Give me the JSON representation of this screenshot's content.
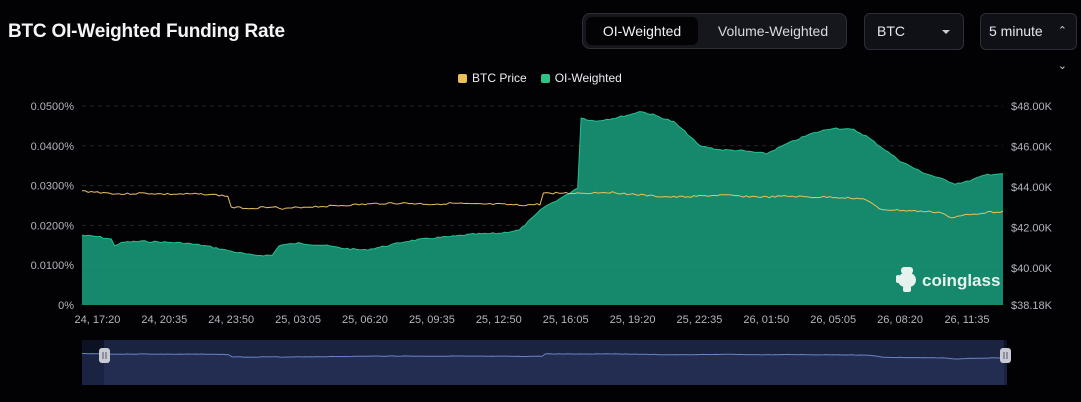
{
  "header": {
    "title": "BTC OI-Weighted Funding Rate",
    "tabs": [
      "OI-Weighted",
      "Volume-Weighted"
    ],
    "active_tab": "OI-Weighted",
    "coin_select": "BTC",
    "interval_select": "5 minute"
  },
  "watermark": "coinglass",
  "colors": {
    "funding_area": "#1aa07f",
    "btc_price": "#e8c05c",
    "legend_funding": "#2ec486",
    "navigator": "#1a2340"
  },
  "chart_data": {
    "type": "area",
    "x_ticks": [
      "24, 17:20",
      "24, 20:35",
      "24, 23:50",
      "25, 03:05",
      "25, 06:20",
      "25, 09:35",
      "25, 12:50",
      "25, 16:05",
      "25, 19:20",
      "25, 22:35",
      "26, 01:50",
      "26, 05:05",
      "26, 08:20",
      "26, 11:35"
    ],
    "y_left_ticks": [
      "0%",
      "0.0100%",
      "0.0200%",
      "0.0300%",
      "0.0400%",
      "0.0500%"
    ],
    "y_right_ticks": [
      "$38.18K",
      "$40.00K",
      "$42.00K",
      "$44.00K",
      "$46.00K",
      "$48.00K"
    ],
    "ylim_left": [
      0,
      0.0005
    ],
    "ylim_right": [
      38180,
      48000
    ],
    "grid": "horizontal",
    "legend_position": "top-center",
    "series": [
      {
        "name": "BTC Price",
        "axis": "right",
        "type": "line",
        "points": [
          [
            "24, 16:35",
            43800
          ],
          [
            "24, 17:20",
            43750
          ],
          [
            "24, 18:30",
            43650
          ],
          [
            "24, 19:30",
            43700
          ],
          [
            "24, 20:35",
            43650
          ],
          [
            "24, 21:40",
            43650
          ],
          [
            "24, 22:40",
            43650
          ],
          [
            "24, 23:40",
            43550
          ],
          [
            "24, 23:50",
            43000
          ],
          [
            "25, 00:50",
            42950
          ],
          [
            "25, 01:50",
            43050
          ],
          [
            "25, 02:20",
            42900
          ],
          [
            "25, 03:05",
            43000
          ],
          [
            "25, 04:20",
            43050
          ],
          [
            "25, 05:20",
            43100
          ],
          [
            "25, 06:20",
            43150
          ],
          [
            "25, 07:20",
            43200
          ],
          [
            "25, 08:20",
            43200
          ],
          [
            "25, 09:35",
            43150
          ],
          [
            "25, 10:35",
            43200
          ],
          [
            "25, 11:35",
            43150
          ],
          [
            "25, 12:50",
            43150
          ],
          [
            "25, 13:50",
            43100
          ],
          [
            "25, 14:50",
            43150
          ],
          [
            "25, 15:00",
            43700
          ],
          [
            "25, 16:05",
            43700
          ],
          [
            "25, 17:05",
            43700
          ],
          [
            "25, 18:05",
            43750
          ],
          [
            "25, 19:20",
            43650
          ],
          [
            "25, 20:20",
            43550
          ],
          [
            "25, 21:20",
            43500
          ],
          [
            "25, 22:35",
            43550
          ],
          [
            "25, 23:35",
            43600
          ],
          [
            "26, 00:35",
            43550
          ],
          [
            "26, 01:50",
            43500
          ],
          [
            "26, 02:50",
            43550
          ],
          [
            "26, 04:00",
            43500
          ],
          [
            "26, 05:05",
            43500
          ],
          [
            "26, 06:05",
            43450
          ],
          [
            "26, 06:40",
            43400
          ],
          [
            "26, 07:20",
            42900
          ],
          [
            "26, 08:20",
            42850
          ],
          [
            "26, 09:20",
            42800
          ],
          [
            "26, 10:20",
            42750
          ],
          [
            "26, 10:50",
            42450
          ],
          [
            "26, 11:35",
            42650
          ],
          [
            "26, 12:35",
            42750
          ],
          [
            "26, 13:20",
            42800
          ]
        ]
      },
      {
        "name": "OI-Weighted",
        "axis": "left",
        "type": "area",
        "points": [
          [
            "24, 16:35",
            0.000175
          ],
          [
            "24, 17:20",
            0.000172
          ],
          [
            "24, 18:00",
            0.000165
          ],
          [
            "24, 18:10",
            0.00015
          ],
          [
            "24, 18:40",
            0.000158
          ],
          [
            "24, 19:30",
            0.00016
          ],
          [
            "24, 20:35",
            0.000158
          ],
          [
            "24, 21:40",
            0.000155
          ],
          [
            "24, 22:40",
            0.000148
          ],
          [
            "24, 23:50",
            0.000135
          ],
          [
            "25, 00:50",
            0.000125
          ],
          [
            "25, 01:50",
            0.000125
          ],
          [
            "25, 02:10",
            0.00015
          ],
          [
            "25, 03:05",
            0.000155
          ],
          [
            "25, 04:20",
            0.00015
          ],
          [
            "25, 05:20",
            0.000142
          ],
          [
            "25, 06:20",
            0.000138
          ],
          [
            "25, 07:20",
            0.000148
          ],
          [
            "25, 08:20",
            0.00016
          ],
          [
            "25, 09:35",
            0.000168
          ],
          [
            "25, 10:35",
            0.000172
          ],
          [
            "25, 11:35",
            0.000178
          ],
          [
            "25, 12:50",
            0.00018
          ],
          [
            "25, 13:50",
            0.000188
          ],
          [
            "25, 14:30",
            0.00022
          ],
          [
            "25, 15:00",
            0.000245
          ],
          [
            "25, 16:05",
            0.000275
          ],
          [
            "25, 16:40",
            0.000295
          ],
          [
            "25, 16:50",
            0.00047
          ],
          [
            "25, 17:30",
            0.000462
          ],
          [
            "25, 18:30",
            0.00047
          ],
          [
            "25, 19:20",
            0.00048
          ],
          [
            "25, 19:40",
            0.000487
          ],
          [
            "25, 20:20",
            0.000478
          ],
          [
            "25, 21:20",
            0.00046
          ],
          [
            "25, 22:00",
            0.00043
          ],
          [
            "25, 22:35",
            0.0004
          ],
          [
            "25, 23:35",
            0.00039
          ],
          [
            "26, 00:35",
            0.000388
          ],
          [
            "26, 01:50",
            0.00038
          ],
          [
            "26, 02:50",
            0.000405
          ],
          [
            "26, 04:00",
            0.00043
          ],
          [
            "26, 05:05",
            0.000445
          ],
          [
            "26, 06:05",
            0.00044
          ],
          [
            "26, 06:40",
            0.000425
          ],
          [
            "26, 07:20",
            0.0004
          ],
          [
            "26, 08:20",
            0.000362
          ],
          [
            "26, 09:20",
            0.000335
          ],
          [
            "26, 10:10",
            0.00032
          ],
          [
            "26, 11:00",
            0.000305
          ],
          [
            "26, 11:35",
            0.00031
          ],
          [
            "26, 12:35",
            0.000328
          ],
          [
            "26, 13:20",
            0.00033
          ]
        ]
      }
    ]
  }
}
